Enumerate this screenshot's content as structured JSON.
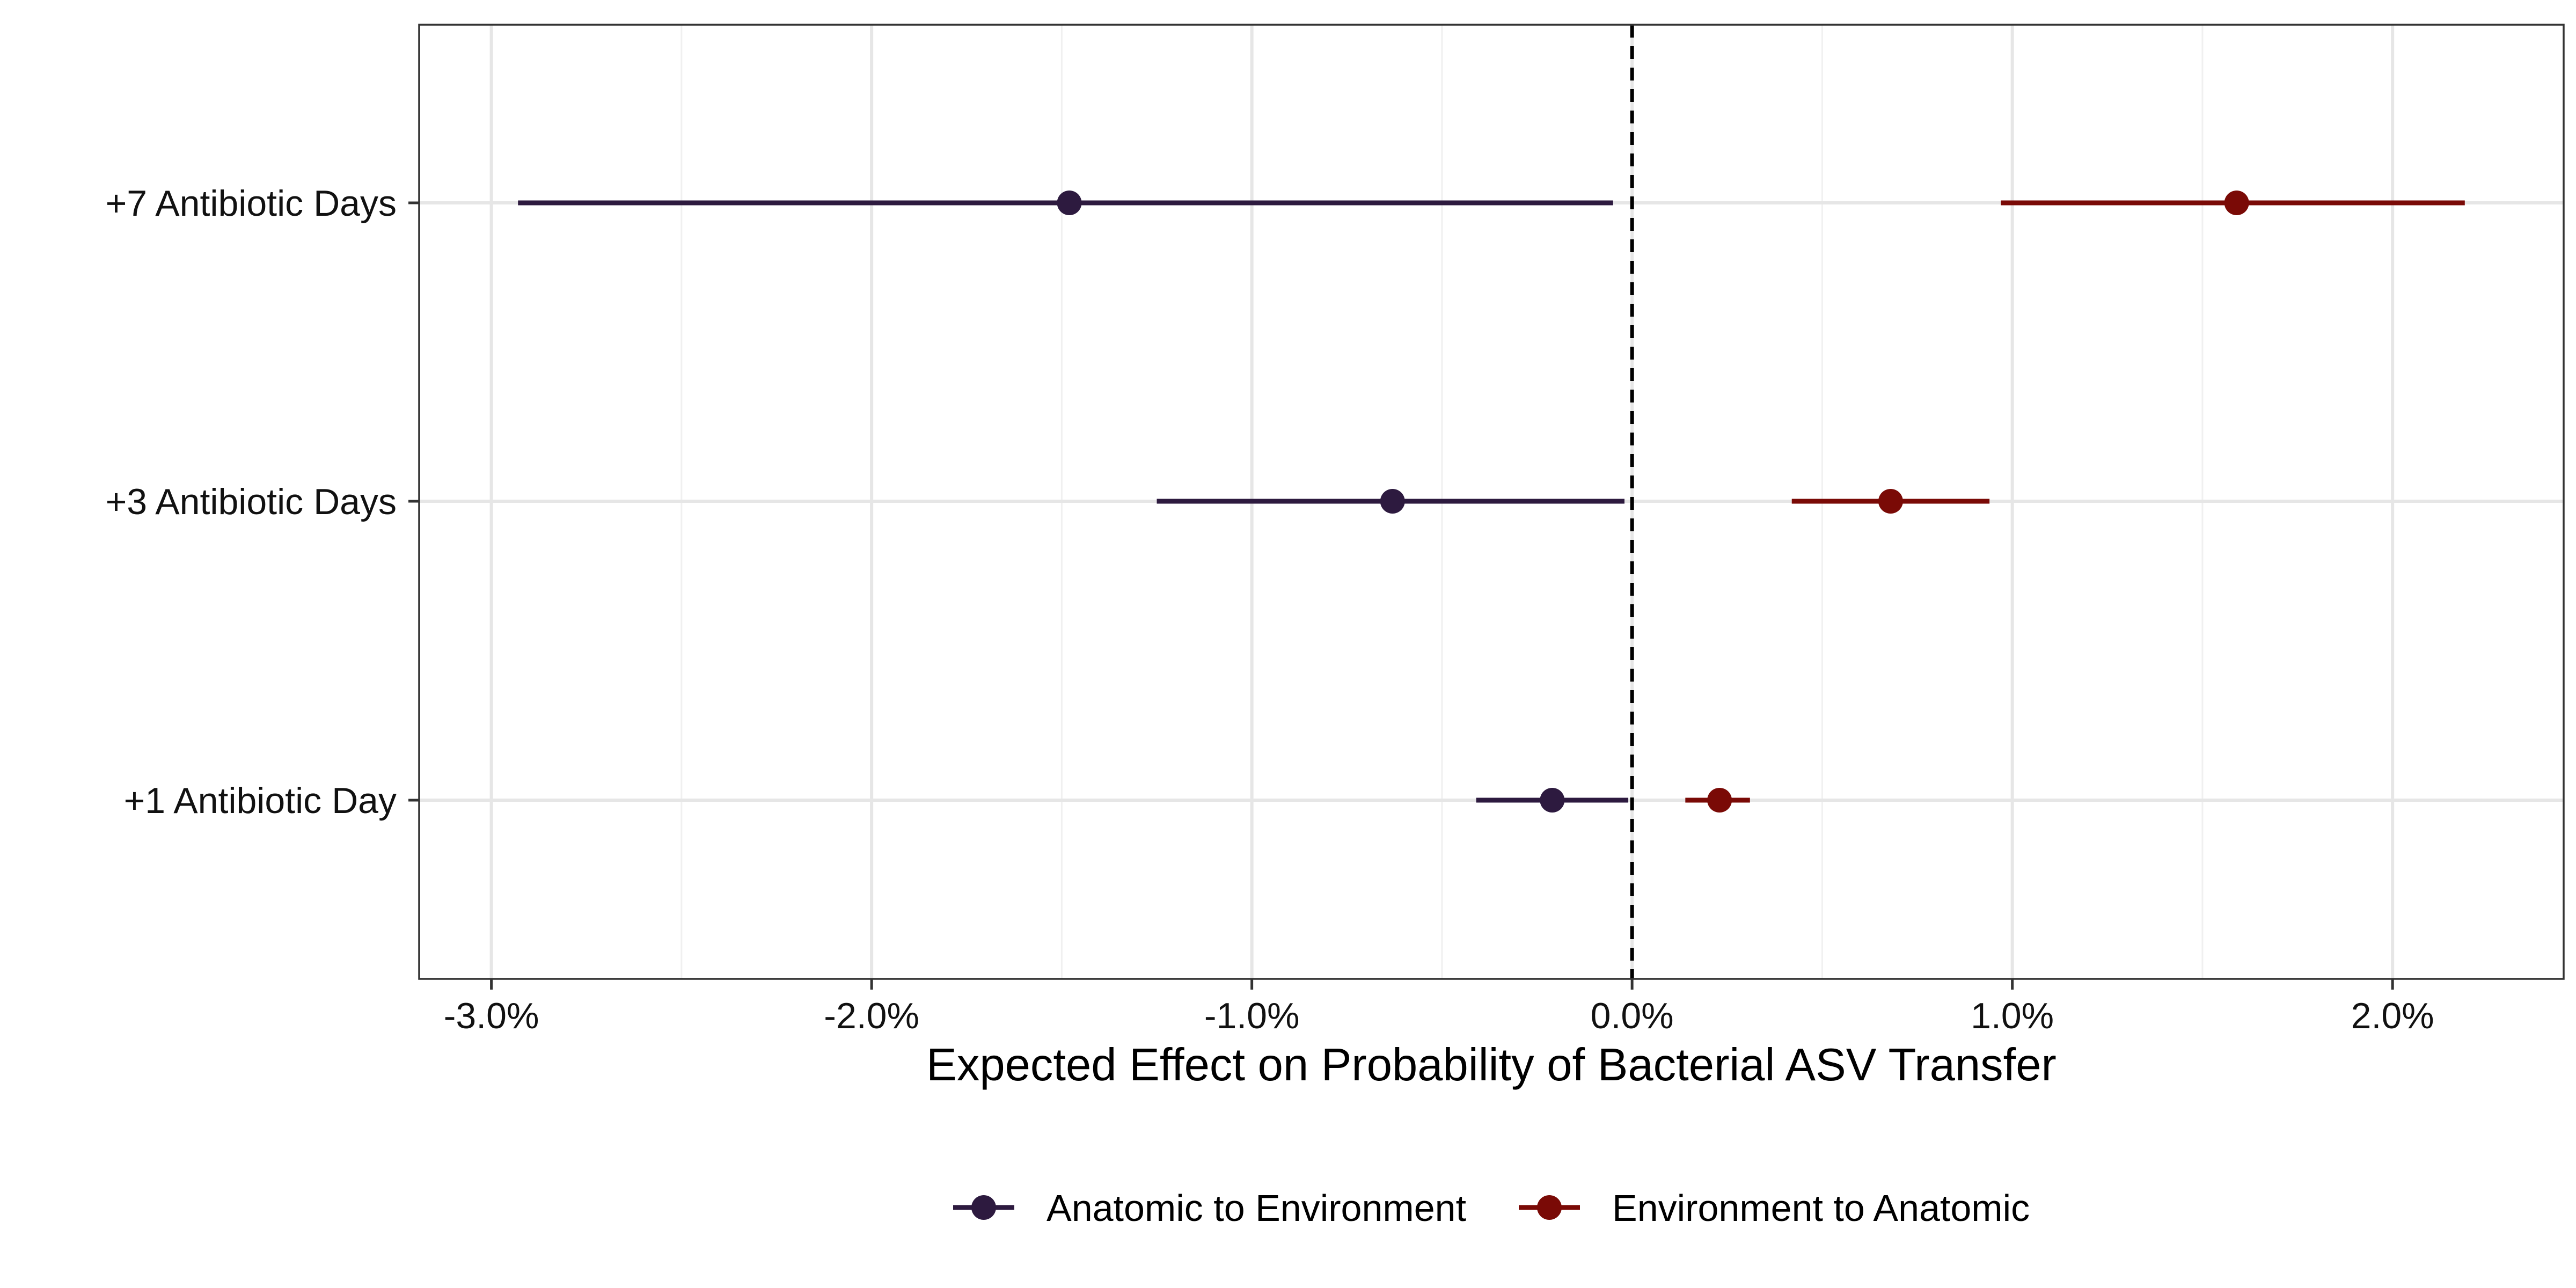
{
  "chart_data": {
    "type": "scatter",
    "subtype": "forest-plot-with-intervals",
    "title": "",
    "xlabel": "Expected Effect on Probability of Bacterial ASV Transfer",
    "ylabel": "",
    "xlim": [
      -3.19,
      2.45
    ],
    "x_ticks": [
      -3.0,
      -2.0,
      -1.0,
      0.0,
      1.0,
      2.0
    ],
    "x_tick_labels": [
      "-3.0%",
      "-2.0%",
      "-1.0%",
      "0.0%",
      "1.0%",
      "2.0%"
    ],
    "x_unit": "%",
    "reference_line": {
      "x": 0.0,
      "style": "dashed",
      "color": "#000000"
    },
    "grid": true,
    "categories": [
      "+7 Antibiotic Days",
      "+3 Antibiotic Days",
      "+1 Antibiotic Day"
    ],
    "series": [
      {
        "name": "Anatomic to Environment",
        "color": "#2d1a3f",
        "points": [
          {
            "category": "+7 Antibiotic Days",
            "estimate": -1.48,
            "lower": -2.93,
            "upper": -0.05
          },
          {
            "category": "+3 Antibiotic Days",
            "estimate": -0.63,
            "lower": -1.25,
            "upper": -0.02
          },
          {
            "category": "+1 Antibiotic Day",
            "estimate": -0.21,
            "lower": -0.41,
            "upper": -0.01
          }
        ]
      },
      {
        "name": "Environment to Anatomic",
        "color": "#7a0a06",
        "points": [
          {
            "category": "+7 Antibiotic Days",
            "estimate": 1.59,
            "lower": 0.97,
            "upper": 2.19
          },
          {
            "category": "+3 Antibiotic Days",
            "estimate": 0.68,
            "lower": 0.42,
            "upper": 0.94
          },
          {
            "category": "+1 Antibiotic Day",
            "estimate": 0.23,
            "lower": 0.14,
            "upper": 0.31
          }
        ]
      }
    ],
    "legend": {
      "placement": "bottom",
      "orientation": "horizontal"
    }
  }
}
